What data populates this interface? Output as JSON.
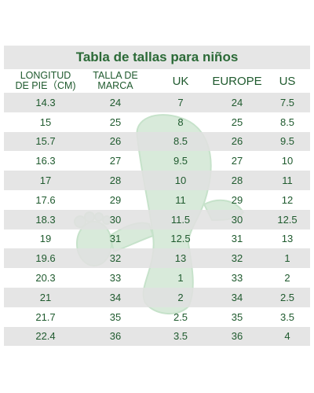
{
  "title": "Tabla de tallas para niños",
  "table": {
    "header": [
      [
        "LONGITUD",
        "DE PIE（CM)"
      ],
      [
        "TALLA DE",
        "MARCA"
      ],
      [
        "UK"
      ],
      [
        "EUROPE"
      ],
      [
        "US"
      ]
    ],
    "rows": [
      [
        "14.3",
        "24",
        "7",
        "24",
        "7.5"
      ],
      [
        "15",
        "25",
        "8",
        "25",
        "8.5"
      ],
      [
        "15.7",
        "26",
        "8.5",
        "26",
        "9.5"
      ],
      [
        "16.3",
        "27",
        "9.5",
        "27",
        "10"
      ],
      [
        "17",
        "28",
        "10",
        "28",
        "11"
      ],
      [
        "17.6",
        "29",
        "11",
        "29",
        "12"
      ],
      [
        "18.3",
        "30",
        "11.5",
        "30",
        "12.5"
      ],
      [
        "19",
        "31",
        "12.5",
        "31",
        "13"
      ],
      [
        "19.6",
        "32",
        "13",
        "32",
        "1"
      ],
      [
        "20.3",
        "33",
        "1",
        "33",
        "2"
      ],
      [
        "21",
        "34",
        "2",
        "34",
        "2.5"
      ],
      [
        "21.7",
        "35",
        "2.5",
        "35",
        "3.5"
      ],
      [
        "22.4",
        "36",
        "3.5",
        "36",
        "4"
      ]
    ]
  }
}
